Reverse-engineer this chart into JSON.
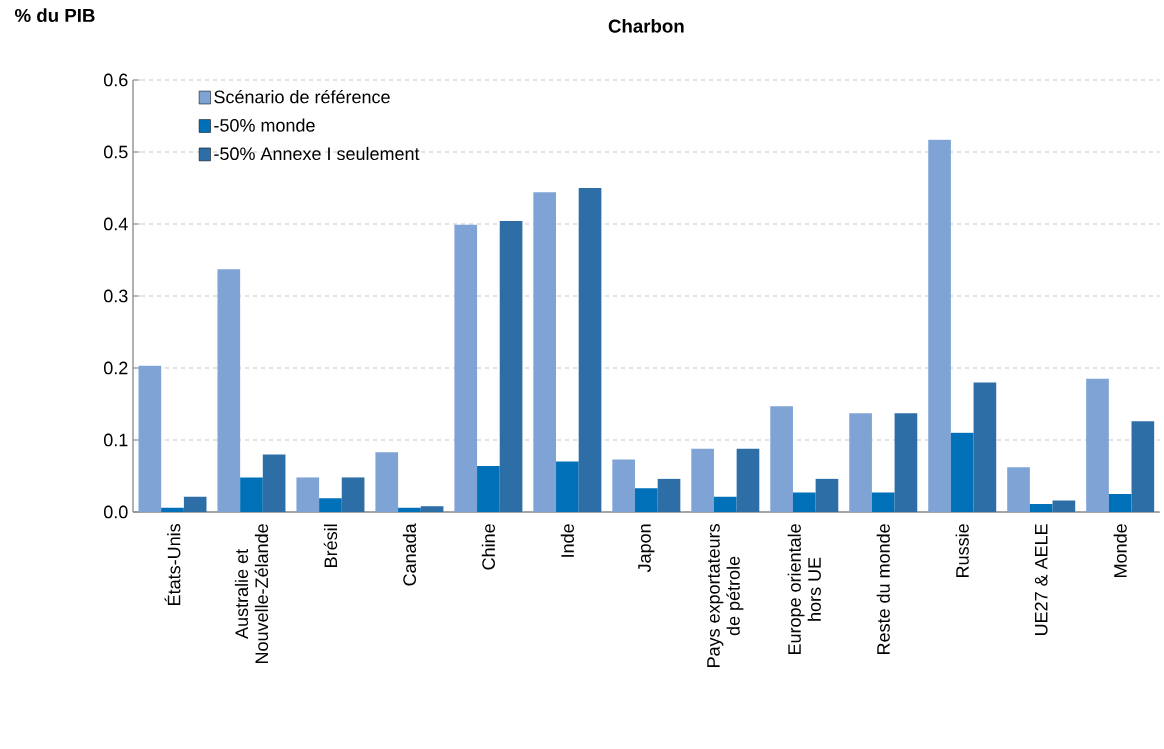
{
  "chart_data": {
    "type": "bar",
    "title": "Charbon",
    "ylabel": "% du PIB",
    "categories": [
      "États-Unis",
      "Australie et Nouvelle-Zélande",
      "Brésil",
      "Canada",
      "Chine",
      "Inde",
      "Japon",
      "Pays exportateurs de pétrole",
      "Europe orientale hors UE",
      "Reste du monde",
      "Russie",
      "UE27 & AELE",
      "Monde"
    ],
    "series": [
      {
        "name": "Scénario de référence",
        "color": "#7fa3d5",
        "values": [
          0.203,
          0.337,
          0.048,
          0.083,
          0.399,
          0.444,
          0.073,
          0.088,
          0.147,
          0.137,
          0.517,
          0.062,
          0.185
        ]
      },
      {
        "name": "-50% monde",
        "color": "#0070b8",
        "values": [
          0.006,
          0.048,
          0.019,
          0.006,
          0.064,
          0.07,
          0.033,
          0.021,
          0.027,
          0.027,
          0.11,
          0.011,
          0.025
        ]
      },
      {
        "name": "-50% Annexe I seulement",
        "color": "#2e6ea6",
        "values": [
          0.021,
          0.08,
          0.048,
          0.008,
          0.404,
          0.45,
          0.046,
          0.088,
          0.046,
          0.137,
          0.18,
          0.016,
          0.126
        ]
      }
    ],
    "ylim": [
      0,
      0.6
    ],
    "yticks": [
      {
        "value": 0,
        "label": "0.0"
      },
      {
        "value": 0.1,
        "label": "0.1"
      },
      {
        "value": 0.2,
        "label": "0.2"
      },
      {
        "value": 0.3,
        "label": "0.3"
      },
      {
        "value": 0.4,
        "label": "0.4"
      },
      {
        "value": 0.5,
        "label": "0.5"
      },
      {
        "value": 0.6,
        "label": "0.6"
      }
    ],
    "grid": "y",
    "legend": "top left"
  }
}
